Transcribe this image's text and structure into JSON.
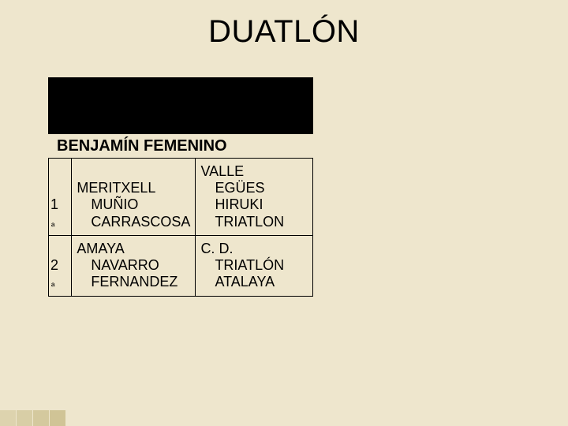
{
  "page": {
    "title": "DUATLÓN",
    "subtitle": "BENJAMÍN FEMENINO",
    "background_color": "#eee6cd",
    "title_fontsize": 40,
    "subtitle_fontsize": 20
  },
  "table": {
    "type": "table",
    "border_color": "#000000",
    "cell_fontsize": 18,
    "rows": [
      {
        "rank_num": "1",
        "rank_suffix": "ª",
        "name_first": "MERITXELL",
        "name_last": "MUÑIO CARRASCOSA",
        "club_line1": "VALLE",
        "club_line2": "EGÜES HIRUKI TRIATLON"
      },
      {
        "rank_num": "2",
        "rank_suffix": "ª",
        "name_first": "AMAYA",
        "name_last": "NAVARRO FERNANDEZ",
        "club_line1": "C. D.",
        "club_line2": "TRIATLÓN ATALAYA"
      }
    ]
  }
}
